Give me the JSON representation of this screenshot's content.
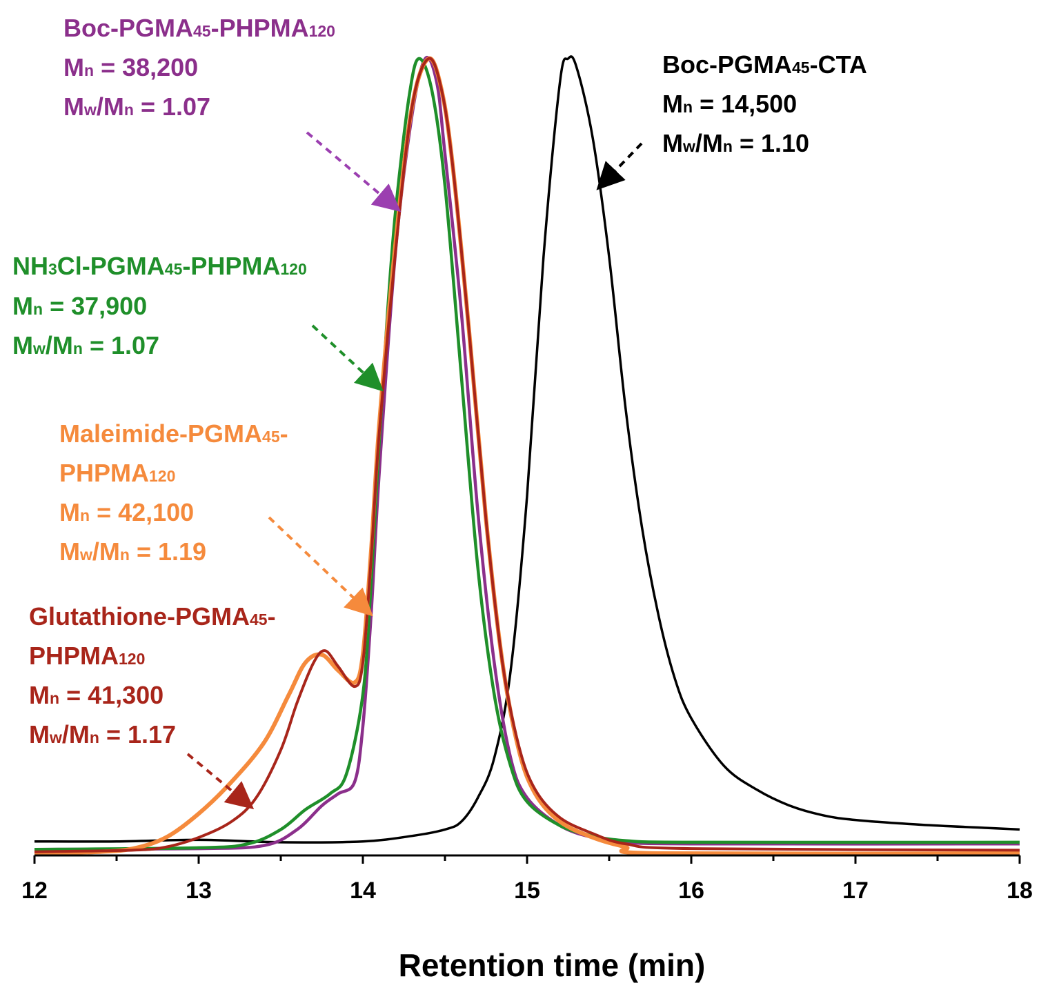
{
  "chart_data": {
    "type": "line",
    "xlabel": "Retention time (min)",
    "ylabel": "",
    "xlim": [
      12,
      18
    ],
    "ylim": [
      0,
      1
    ],
    "x_ticks": [
      "12",
      "13",
      "14",
      "15",
      "16",
      "17",
      "18"
    ],
    "grid": false,
    "series": [
      {
        "key": "boc_cta",
        "color": "#000000",
        "label": {
          "name_main": "Boc-PGMA",
          "name_sub1": "45",
          "name_rest": "-CTA",
          "mn": "14,500",
          "pdi": "1.10"
        },
        "points": [
          [
            12.0,
            0.015
          ],
          [
            12.5,
            0.015
          ],
          [
            13.0,
            0.017
          ],
          [
            13.5,
            0.014
          ],
          [
            14.0,
            0.015
          ],
          [
            14.3,
            0.022
          ],
          [
            14.5,
            0.03
          ],
          [
            14.6,
            0.04
          ],
          [
            14.7,
            0.07
          ],
          [
            14.8,
            0.12
          ],
          [
            14.9,
            0.23
          ],
          [
            15.0,
            0.45
          ],
          [
            15.1,
            0.75
          ],
          [
            15.2,
            0.97
          ],
          [
            15.25,
            1.0
          ],
          [
            15.3,
            0.99
          ],
          [
            15.4,
            0.9
          ],
          [
            15.5,
            0.75
          ],
          [
            15.6,
            0.56
          ],
          [
            15.7,
            0.41
          ],
          [
            15.8,
            0.3
          ],
          [
            15.9,
            0.22
          ],
          [
            16.0,
            0.17
          ],
          [
            16.2,
            0.11
          ],
          [
            16.4,
            0.08
          ],
          [
            16.6,
            0.06
          ],
          [
            16.8,
            0.048
          ],
          [
            17.0,
            0.042
          ],
          [
            17.4,
            0.036
          ],
          [
            17.8,
            0.032
          ],
          [
            18.0,
            0.03
          ]
        ]
      },
      {
        "key": "boc_block",
        "color": "#8b2f8b",
        "label": {
          "name_main": "Boc-PGMA",
          "name_sub1": "45",
          "name_mid": "-PHPMA",
          "name_sub2": "120",
          "mn": "38,200",
          "pdi": "1.07"
        },
        "points": [
          [
            12.0,
            0.005
          ],
          [
            13.0,
            0.006
          ],
          [
            13.4,
            0.01
          ],
          [
            13.6,
            0.03
          ],
          [
            13.75,
            0.06
          ],
          [
            13.85,
            0.075
          ],
          [
            13.95,
            0.09
          ],
          [
            14.0,
            0.16
          ],
          [
            14.05,
            0.3
          ],
          [
            14.1,
            0.48
          ],
          [
            14.2,
            0.76
          ],
          [
            14.3,
            0.93
          ],
          [
            14.38,
            1.0
          ],
          [
            14.45,
            0.97
          ],
          [
            14.5,
            0.88
          ],
          [
            14.6,
            0.68
          ],
          [
            14.7,
            0.43
          ],
          [
            14.8,
            0.24
          ],
          [
            14.9,
            0.12
          ],
          [
            15.0,
            0.07
          ],
          [
            15.2,
            0.035
          ],
          [
            15.4,
            0.02
          ],
          [
            15.6,
            0.014
          ],
          [
            16.0,
            0.012
          ],
          [
            18.0,
            0.012
          ]
        ]
      },
      {
        "key": "nh3cl_block",
        "color": "#1f8f2a",
        "label": {
          "name_main": "NH",
          "name_sub1": "3",
          "name_mid": "Cl-PGMA",
          "name_sub2": "45",
          "name_rest": "-PHPMA",
          "name_sub3": "120",
          "mn": "37,900",
          "pdi": "1.07"
        },
        "points": [
          [
            12.0,
            0.005
          ],
          [
            13.0,
            0.007
          ],
          [
            13.3,
            0.012
          ],
          [
            13.5,
            0.03
          ],
          [
            13.65,
            0.055
          ],
          [
            13.8,
            0.075
          ],
          [
            13.9,
            0.1
          ],
          [
            14.0,
            0.2
          ],
          [
            14.05,
            0.34
          ],
          [
            14.1,
            0.52
          ],
          [
            14.15,
            0.68
          ],
          [
            14.2,
            0.81
          ],
          [
            14.28,
            0.95
          ],
          [
            14.34,
            1.0
          ],
          [
            14.42,
            0.96
          ],
          [
            14.5,
            0.84
          ],
          [
            14.6,
            0.6
          ],
          [
            14.7,
            0.36
          ],
          [
            14.8,
            0.2
          ],
          [
            14.9,
            0.11
          ],
          [
            15.0,
            0.065
          ],
          [
            15.2,
            0.035
          ],
          [
            15.4,
            0.022
          ],
          [
            15.6,
            0.016
          ],
          [
            16.0,
            0.014
          ],
          [
            18.0,
            0.014
          ]
        ]
      },
      {
        "key": "maleimide_block",
        "color": "#f58a3c",
        "label": {
          "name_main": "Maleimide-PGMA",
          "name_sub1": "45",
          "name_line2": "PHPMA",
          "name_sub2": "120",
          "mn": "42,100",
          "pdi": "1.19"
        },
        "points": [
          [
            12.0,
            0.0
          ],
          [
            12.4,
            0.002
          ],
          [
            12.6,
            0.006
          ],
          [
            12.8,
            0.02
          ],
          [
            13.0,
            0.05
          ],
          [
            13.2,
            0.09
          ],
          [
            13.4,
            0.14
          ],
          [
            13.55,
            0.2
          ],
          [
            13.65,
            0.24
          ],
          [
            13.75,
            0.25
          ],
          [
            13.85,
            0.23
          ],
          [
            13.95,
            0.215
          ],
          [
            14.0,
            0.25
          ],
          [
            14.05,
            0.38
          ],
          [
            14.1,
            0.54
          ],
          [
            14.2,
            0.77
          ],
          [
            14.3,
            0.94
          ],
          [
            14.4,
            1.0
          ],
          [
            14.48,
            0.96
          ],
          [
            14.55,
            0.86
          ],
          [
            14.65,
            0.65
          ],
          [
            14.75,
            0.42
          ],
          [
            14.85,
            0.24
          ],
          [
            14.95,
            0.13
          ],
          [
            15.05,
            0.075
          ],
          [
            15.2,
            0.04
          ],
          [
            15.4,
            0.02
          ],
          [
            15.6,
            0.008
          ],
          [
            15.8,
            0.0
          ],
          [
            18.0,
            0.0
          ]
        ]
      },
      {
        "key": "glutathione_block",
        "color": "#a8251a",
        "label": {
          "name_main": "Glutathione-PGMA",
          "name_sub1": "45",
          "name_line2": "PHPMA",
          "name_sub2": "120",
          "mn": "41,300",
          "pdi": "1.17"
        },
        "points": [
          [
            12.0,
            0.002
          ],
          [
            12.6,
            0.004
          ],
          [
            12.8,
            0.008
          ],
          [
            13.0,
            0.02
          ],
          [
            13.2,
            0.04
          ],
          [
            13.35,
            0.07
          ],
          [
            13.5,
            0.13
          ],
          [
            13.6,
            0.19
          ],
          [
            13.7,
            0.24
          ],
          [
            13.77,
            0.255
          ],
          [
            13.85,
            0.235
          ],
          [
            13.95,
            0.21
          ],
          [
            14.0,
            0.24
          ],
          [
            14.05,
            0.37
          ],
          [
            14.1,
            0.53
          ],
          [
            14.2,
            0.76
          ],
          [
            14.3,
            0.94
          ],
          [
            14.4,
            1.0
          ],
          [
            14.48,
            0.96
          ],
          [
            14.55,
            0.86
          ],
          [
            14.65,
            0.65
          ],
          [
            14.75,
            0.42
          ],
          [
            14.85,
            0.24
          ],
          [
            14.95,
            0.135
          ],
          [
            15.05,
            0.08
          ],
          [
            15.2,
            0.045
          ],
          [
            15.4,
            0.025
          ],
          [
            15.6,
            0.012
          ],
          [
            16.0,
            0.006
          ],
          [
            18.0,
            0.004
          ]
        ]
      }
    ]
  }
}
